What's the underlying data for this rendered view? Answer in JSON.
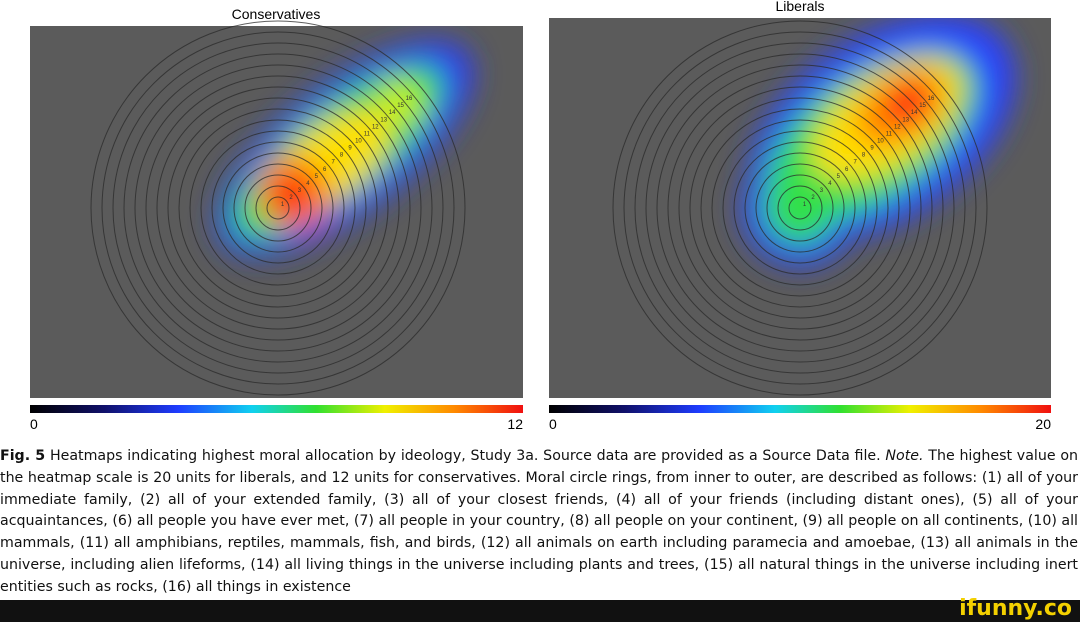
{
  "panels": [
    {
      "title": "Conservatives",
      "scale_min": "0",
      "scale_max": "12",
      "ring_labels": [
        "1",
        "2",
        "3",
        "4",
        "5",
        "6",
        "7",
        "8",
        "9",
        "10",
        "11",
        "12",
        "13",
        "14",
        "15",
        "16"
      ]
    },
    {
      "title": "Liberals",
      "scale_min": "0",
      "scale_max": "20",
      "ring_labels": [
        "1",
        "2",
        "3",
        "4",
        "5",
        "6",
        "7",
        "8",
        "9",
        "10",
        "11",
        "12",
        "13",
        "14",
        "15",
        "16"
      ]
    }
  ],
  "caption": {
    "label": "Fig. 5",
    "text": "Heatmaps indicating highest moral allocation by ideology, Study 3a. Source data are provided as a Source Data file.",
    "note_label": "Note.",
    "note": "The highest value on the heatmap scale is 20 units for liberals, and 12 units for conservatives. Moral circle rings, from inner to outer, are described as follows: (1) all of your immediate family, (2) all of your extended family, (3) all of your closest friends, (4) all of your friends (including distant ones), (5) all of your acquaintances, (6) all people you have ever met, (7) all people in your country, (8) all people on your continent, (9) all people on all continents, (10) all mammals, (11) all amphibians, reptiles, mammals, fish, and birds, (12) all animals on earth including paramecia and amoebae, (13) all animals in the universe, including alien lifeforms, (14) all living things in the universe including plants and trees, (15) all natural things in the universe including inert entities such as rocks, (16) all things in existence"
  },
  "watermark": "ifunny.co"
}
